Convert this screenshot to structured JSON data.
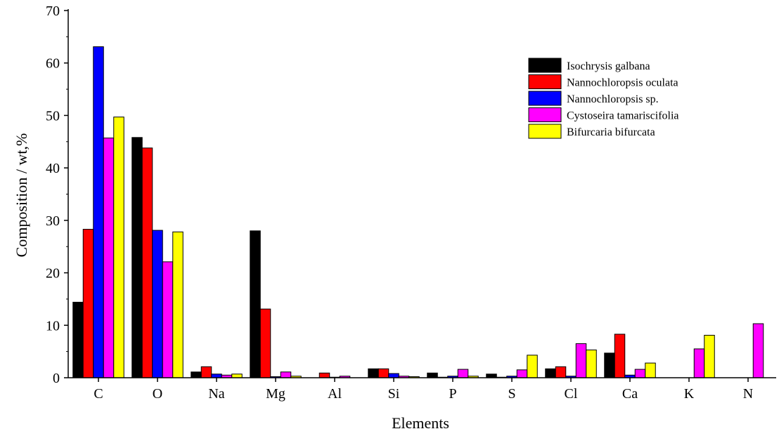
{
  "chart_data": {
    "type": "bar",
    "title": "",
    "xlabel": "Elements",
    "ylabel": "Composition / wt,%",
    "ylim": [
      0,
      70
    ],
    "yticks": [
      0,
      10,
      20,
      30,
      40,
      50,
      60,
      70
    ],
    "grid": false,
    "legend_position": "top-right",
    "categories": [
      "C",
      "O",
      "Na",
      "Mg",
      "Al",
      "Si",
      "P",
      "S",
      "Cl",
      "Ca",
      "K",
      "N"
    ],
    "series": [
      {
        "name": "Isochrysis galbana",
        "color": "#000000",
        "values": [
          14.4,
          45.8,
          1.1,
          28.0,
          0.0,
          1.7,
          0.9,
          0.7,
          1.7,
          4.7,
          0.0,
          0.0
        ]
      },
      {
        "name": "Nannochloropsis oculata",
        "color": "#ff0000",
        "values": [
          28.3,
          43.8,
          2.1,
          13.1,
          0.9,
          1.7,
          0.1,
          0.1,
          2.1,
          8.3,
          0.0,
          0.0
        ]
      },
      {
        "name": "Nannochloropsis sp.",
        "color": "#0000ff",
        "values": [
          63.1,
          28.1,
          0.7,
          0.2,
          0.1,
          0.8,
          0.3,
          0.3,
          0.3,
          0.5,
          0.0,
          0.0
        ]
      },
      {
        "name": "Cystoseira tamariscifolia",
        "color": "#ff00ff",
        "values": [
          45.7,
          22.1,
          0.5,
          1.1,
          0.3,
          0.3,
          1.6,
          1.5,
          6.5,
          1.6,
          5.5,
          10.3
        ]
      },
      {
        "name": "Bifurcaria bifurcata",
        "color": "#ffff00",
        "values": [
          49.7,
          27.8,
          0.7,
          0.3,
          0.0,
          0.2,
          0.3,
          4.3,
          5.3,
          2.8,
          8.1,
          0.0
        ]
      }
    ]
  }
}
